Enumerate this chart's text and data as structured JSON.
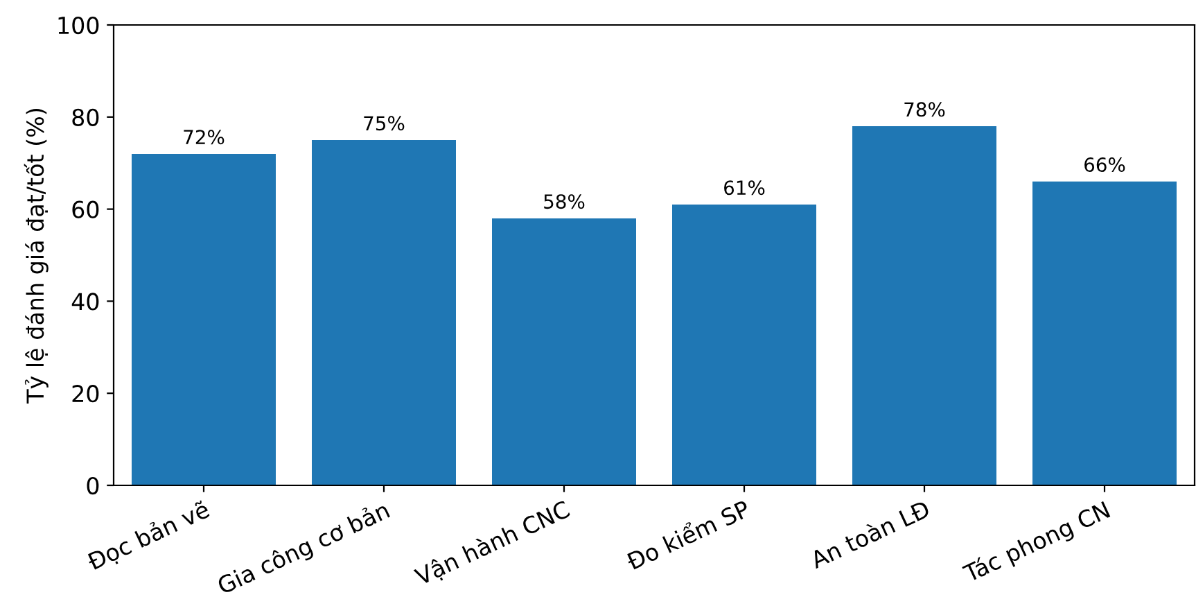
{
  "chart_data": {
    "type": "bar",
    "categories": [
      "Đọc bản vẽ",
      "Gia công cơ bản",
      "Vận hành CNC",
      "Đo kiểm SP",
      "An toàn LĐ",
      "Tác phong CN"
    ],
    "values": [
      72,
      75,
      58,
      61,
      78,
      66
    ],
    "value_labels": [
      "72%",
      "75%",
      "58%",
      "61%",
      "78%",
      "66%"
    ],
    "color": "#1f77b4",
    "ylabel": "Tỷ lệ đánh giá đạt/tốt (%)",
    "ylim": [
      0,
      100
    ],
    "yticks": [
      0,
      20,
      40,
      60,
      80,
      100
    ],
    "grid": false
  }
}
